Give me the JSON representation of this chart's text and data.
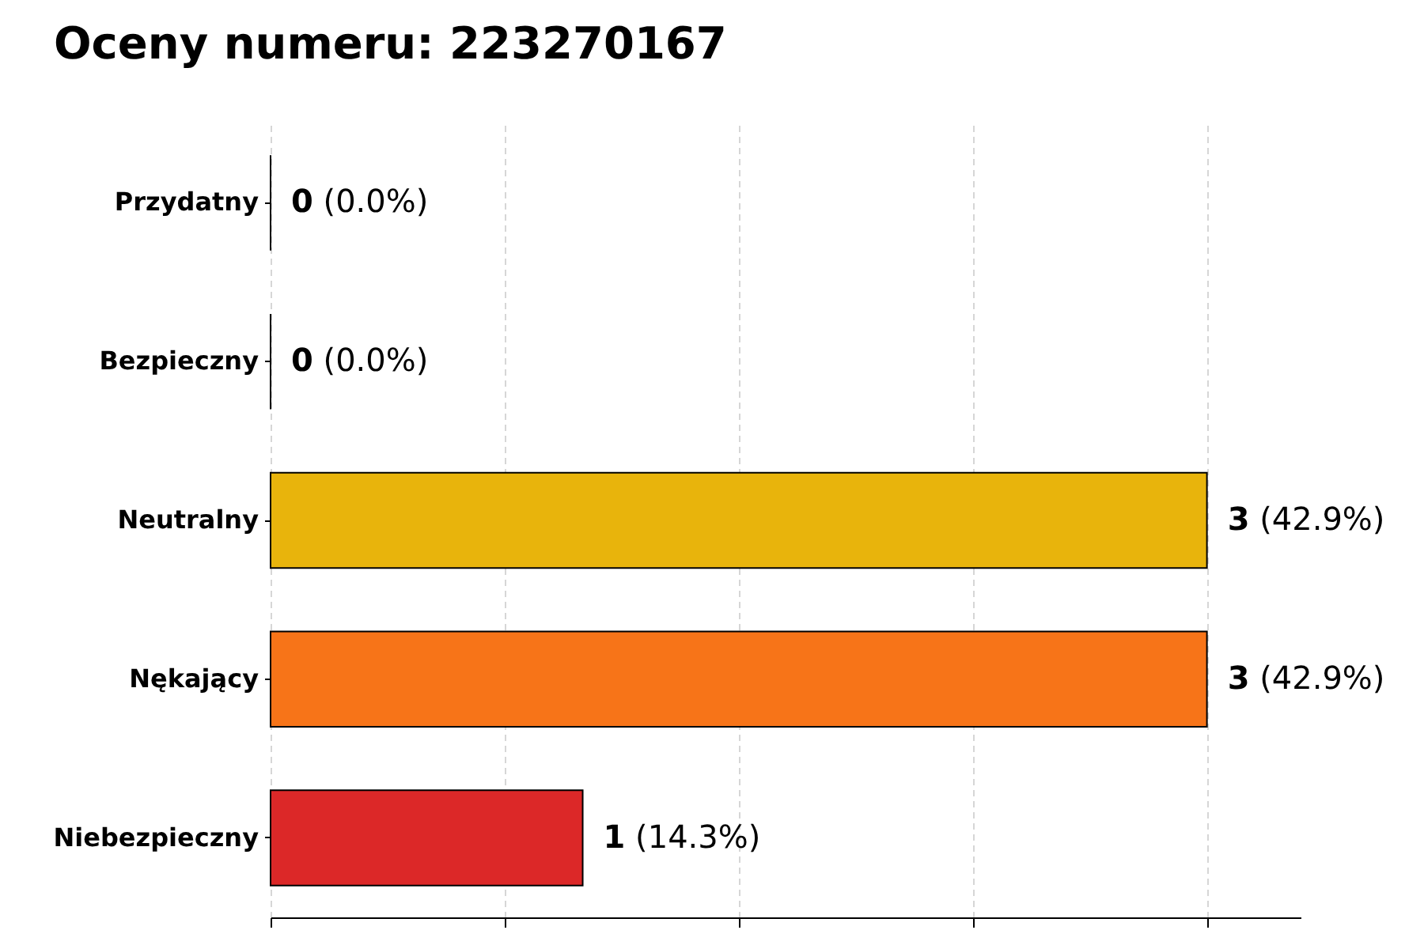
{
  "chart_data": {
    "type": "bar",
    "orientation": "horizontal",
    "title": "Oceny numeru: 223270167",
    "categories": [
      "Przydatny",
      "Bezpieczny",
      "Neutralny",
      "Nękający",
      "Niebezpieczny"
    ],
    "values": [
      0,
      0,
      3,
      3,
      1
    ],
    "colors": [
      null,
      null,
      "#e8b40c",
      "#f77418",
      "#dc2828"
    ],
    "value_labels": [
      "0 (0.0%)",
      "0 (0.0%)",
      "3 (42.9%)",
      "3 (42.9%)",
      "1 (14.3%)"
    ],
    "xlim": [
      0,
      3.3
    ],
    "xticks": [
      {
        "value": 0,
        "label": null
      },
      {
        "value": 0.75,
        "label": null
      },
      {
        "value": 1.5,
        "label": null
      },
      {
        "value": 2.25,
        "label": null
      },
      {
        "value": 3,
        "label": null
      }
    ],
    "tick_labels": "y",
    "grid": "x",
    "legend": false
  }
}
